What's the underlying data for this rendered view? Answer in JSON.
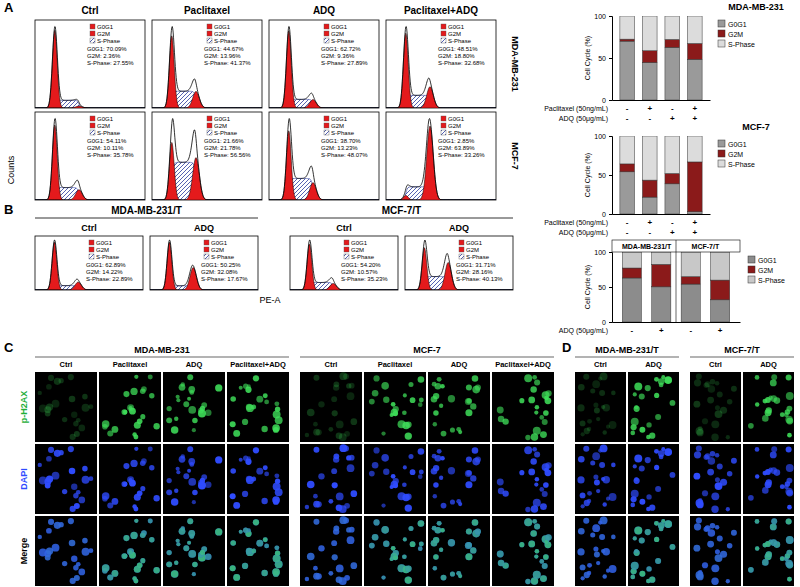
{
  "figure": {
    "panel_labels": [
      "A",
      "B",
      "C",
      "D"
    ],
    "y_label": "Counts",
    "x_label": "PE-A",
    "flow_a": {
      "columns": [
        "Ctrl",
        "Paclitaxel",
        "ADQ",
        "Paclitaxel+ADQ"
      ],
      "rows": [
        "MDA-MB-231",
        "MCF-7"
      ]
    },
    "flow_b": {
      "groups": [
        {
          "title": "MDA-MB-231/T",
          "columns": [
            "Ctrl",
            "ADQ"
          ]
        },
        {
          "title": "MCF-7/T",
          "columns": [
            "Ctrl",
            "ADQ"
          ]
        }
      ]
    },
    "micro_c": {
      "rows": [
        "p-H2AX",
        "DAPI",
        "Merge"
      ],
      "groups": [
        {
          "title": "MDA-MB-231",
          "columns": [
            "Ctrl",
            "Paclitaxel",
            "ADQ",
            "Paclitaxel+ADQ"
          ]
        },
        {
          "title": "MCF-7",
          "columns": [
            "Ctrl",
            "Paclitaxel",
            "ADQ",
            "Paclitaxel+ADQ"
          ]
        }
      ]
    },
    "micro_d": {
      "groups": [
        {
          "title": "MDA-MB-231/T",
          "columns": [
            "Ctrl",
            "ADQ"
          ]
        },
        {
          "title": "MCF-7/T",
          "columns": [
            "Ctrl",
            "ADQ"
          ]
        }
      ]
    }
  },
  "chart_data": [
    {
      "type": "flow_histogram",
      "categories": [
        "G0G1",
        "G2M",
        "S-Phase"
      ],
      "values": [
        70.09,
        2.36,
        27.55
      ],
      "value_labels": [
        "G0G1: 70.09%",
        "G2M: 2.36%",
        "S-Phase: 27.55%"
      ],
      "colors": [
        "#e41a1c",
        "#e41a1c",
        "#2b3a9e"
      ],
      "tick_labels": false
    },
    {
      "type": "flow_histogram",
      "categories": [
        "G0G1",
        "G2M",
        "S-Phase"
      ],
      "values": [
        44.67,
        13.96,
        41.37
      ],
      "value_labels": [
        "G0G1: 44.67%",
        "G2M: 13.96%",
        "S-Phase: 41.37%"
      ],
      "colors": [
        "#e41a1c",
        "#e41a1c",
        "#2b3a9e"
      ],
      "tick_labels": false
    },
    {
      "type": "flow_histogram",
      "categories": [
        "G0G1",
        "G2M",
        "S-Phase"
      ],
      "values": [
        62.72,
        9.36,
        27.89
      ],
      "value_labels": [
        "G0G1: 62.72%",
        "G2M: 9.36%",
        "S-Phase: 27.89%"
      ],
      "colors": [
        "#e41a1c",
        "#e41a1c",
        "#2b3a9e"
      ],
      "tick_labels": false
    },
    {
      "type": "flow_histogram",
      "categories": [
        "G0G1",
        "G2M",
        "S-Phase"
      ],
      "values": [
        48.51,
        18.8,
        32.68
      ],
      "value_labels": [
        "G0G1: 48.51%",
        "G2M: 18.80%",
        "S-Phase: 32.68%"
      ],
      "colors": [
        "#e41a1c",
        "#e41a1c",
        "#2b3a9e"
      ],
      "tick_labels": false
    },
    {
      "type": "flow_histogram",
      "categories": [
        "G0G1",
        "G2M",
        "S-Phase"
      ],
      "values": [
        54.11,
        10.11,
        35.78
      ],
      "value_labels": [
        "G0G1: 54.11%",
        "G2M: 10.11%",
        "S-Phase: 35.78%"
      ],
      "colors": [
        "#e41a1c",
        "#e41a1c",
        "#2b3a9e"
      ],
      "tick_labels": false
    },
    {
      "type": "flow_histogram",
      "categories": [
        "G0G1",
        "G2M",
        "S-Phase"
      ],
      "values": [
        21.66,
        21.78,
        56.56
      ],
      "value_labels": [
        "G0G1: 21.66%",
        "G2M: 21.78%",
        "S-Phase: 56.56%"
      ],
      "colors": [
        "#e41a1c",
        "#e41a1c",
        "#2b3a9e"
      ],
      "tick_labels": false
    },
    {
      "type": "flow_histogram",
      "categories": [
        "G0G1",
        "G2M",
        "S-Phase"
      ],
      "values": [
        38.7,
        13.23,
        48.07
      ],
      "value_labels": [
        "G0G1: 38.70%",
        "G2M: 13.23%",
        "S-Phase: 48.07%"
      ],
      "colors": [
        "#e41a1c",
        "#e41a1c",
        "#2b3a9e"
      ],
      "tick_labels": false
    },
    {
      "type": "flow_histogram",
      "categories": [
        "G0G1",
        "G2M",
        "S-Phase"
      ],
      "values": [
        2.85,
        63.89,
        33.26
      ],
      "value_labels": [
        "G0G1: 2.85%",
        "G2M: 63.89%",
        "S-Phase: 33.26%"
      ],
      "colors": [
        "#e41a1c",
        "#e41a1c",
        "#2b3a9e"
      ],
      "tick_labels": false
    },
    {
      "type": "flow_histogram",
      "categories": [
        "G0G1",
        "G2M",
        "S-Phase"
      ],
      "values": [
        62.89,
        14.22,
        22.89
      ],
      "value_labels": [
        "G0G1: 62.89%",
        "G2M: 14.22%",
        "S-Phase: 22.89%"
      ],
      "colors": [
        "#e41a1c",
        "#e41a1c",
        "#2b3a9e"
      ],
      "tick_labels": false
    },
    {
      "type": "flow_histogram",
      "categories": [
        "G0G1",
        "G2M",
        "S-Phase"
      ],
      "values": [
        50.25,
        32.08,
        17.67
      ],
      "value_labels": [
        "G0G1: 50.25%",
        "G2M: 32.08%",
        "S-Phase: 17.67%"
      ],
      "colors": [
        "#e41a1c",
        "#e41a1c",
        "#2b3a9e"
      ],
      "tick_labels": false
    },
    {
      "type": "flow_histogram",
      "categories": [
        "G0G1",
        "G2M",
        "S-Phase"
      ],
      "values": [
        54.2,
        10.57,
        35.23
      ],
      "value_labels": [
        "G0G1: 54.20%",
        "G2M: 10.57%",
        "S-Phase: 35.23%"
      ],
      "colors": [
        "#e41a1c",
        "#e41a1c",
        "#2b3a9e"
      ],
      "tick_labels": false
    },
    {
      "type": "flow_histogram",
      "categories": [
        "G0G1",
        "G2M",
        "S-Phase"
      ],
      "values": [
        31.71,
        28.16,
        40.13
      ],
      "value_labels": [
        "G0G1: 31.71%",
        "G2M: 28.16%",
        "S-Phase: 40.13%"
      ],
      "colors": [
        "#e41a1c",
        "#e41a1c",
        "#2b3a9e"
      ],
      "tick_labels": false
    },
    {
      "type": "bar",
      "title": "MDA-MB-231",
      "stacked": true,
      "legend": "right",
      "y_label": "Cell Cycle (%)",
      "categories": [
        null,
        null,
        null,
        null
      ],
      "ylim": [
        0,
        100
      ],
      "yticks": [
        0,
        50,
        100
      ],
      "series": [
        {
          "name": "G0G1",
          "color": "#9a9a9a",
          "values": [
            70.09,
            44.67,
            62.72,
            48.51
          ]
        },
        {
          "name": "G2M",
          "color": "#8b1a1a",
          "values": [
            2.36,
            13.96,
            9.36,
            18.8
          ]
        },
        {
          "name": "S-Phase",
          "color": "#dcdcdc",
          "values": [
            27.55,
            41.37,
            27.89,
            32.68
          ]
        }
      ],
      "treatments": [
        {
          "label": "Paclitaxel (50ng/mL)",
          "signs": [
            "-",
            "+",
            "-",
            "+"
          ]
        },
        {
          "label": "ADQ (50μg/mL)",
          "signs": [
            "-",
            "-",
            "+",
            "+"
          ]
        }
      ]
    },
    {
      "type": "bar",
      "title": "MCF-7",
      "stacked": true,
      "legend": "right",
      "y_label": "Cell Cycle (%)",
      "categories": [
        null,
        null,
        null,
        null
      ],
      "ylim": [
        0,
        100
      ],
      "yticks": [
        0,
        50,
        100
      ],
      "series": [
        {
          "name": "G0G1",
          "color": "#9a9a9a",
          "values": [
            54.11,
            21.66,
            38.7,
            2.85
          ]
        },
        {
          "name": "G2M",
          "color": "#8b1a1a",
          "values": [
            10.11,
            21.78,
            13.23,
            63.89
          ]
        },
        {
          "name": "S-Phase",
          "color": "#dcdcdc",
          "values": [
            35.78,
            56.56,
            48.07,
            33.26
          ]
        }
      ],
      "treatments": [
        {
          "label": "Paclitaxel (50ng/mL)",
          "signs": [
            "-",
            "+",
            "-",
            "+"
          ]
        },
        {
          "label": "ADQ (50μg/mL)",
          "signs": [
            "-",
            "-",
            "+",
            "+"
          ]
        }
      ]
    },
    {
      "type": "bar",
      "stacked": true,
      "legend": "right",
      "y_label": "Cell Cycle (%)",
      "group_labels": [
        "MDA-MB-231/T",
        "MCF-7/T"
      ],
      "categories": [
        null,
        null,
        null,
        null
      ],
      "ylim": [
        0,
        100
      ],
      "yticks": [
        0,
        50,
        100
      ],
      "series": [
        {
          "name": "G0G1",
          "color": "#8c8c8c",
          "values": [
            62.89,
            50.25,
            54.2,
            31.71
          ]
        },
        {
          "name": "G2M",
          "color": "#8b1a1a",
          "values": [
            14.22,
            32.08,
            10.57,
            28.16
          ]
        },
        {
          "name": "S-Phase",
          "color": "#c8c8c8",
          "values": [
            22.89,
            17.67,
            35.23,
            40.13
          ]
        }
      ],
      "treatments": [
        {
          "label": "ADQ (50μg/mL)",
          "signs": [
            "-",
            "+",
            "-",
            "+"
          ]
        }
      ]
    }
  ]
}
